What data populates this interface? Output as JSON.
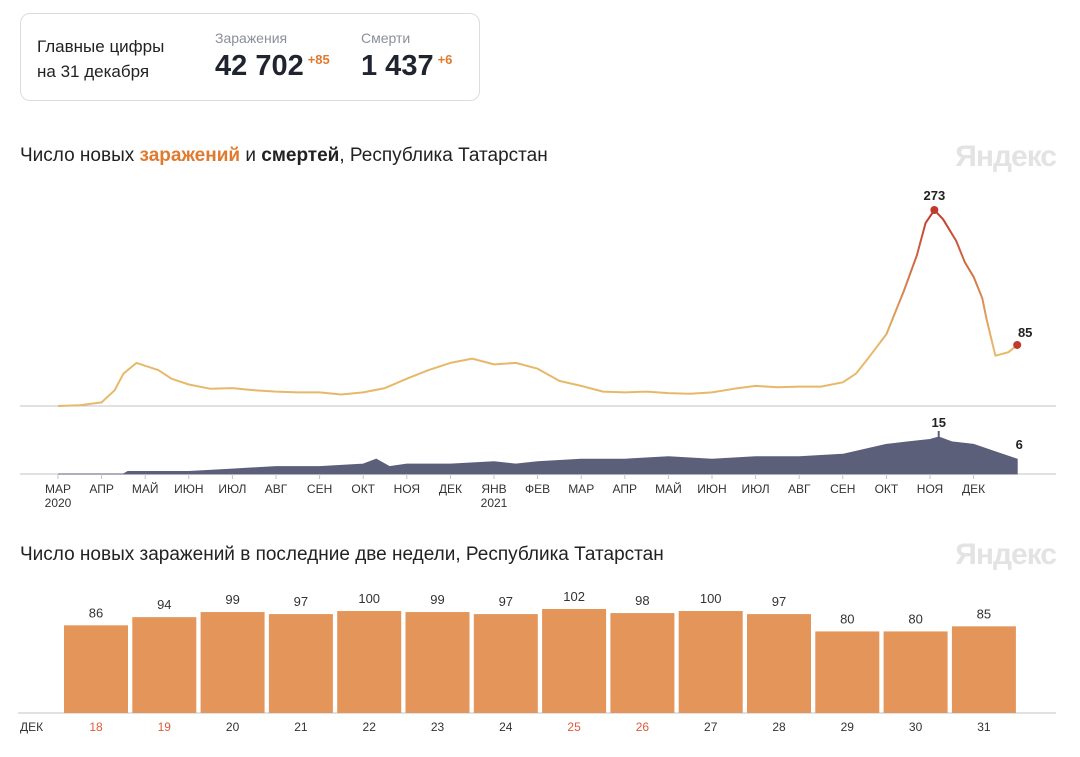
{
  "summary": {
    "heading_line1": "Главные цифры",
    "heading_line2": "на 31 декабря",
    "infections": {
      "label": "Заражения",
      "value": "42 702",
      "delta": "+85"
    },
    "deaths": {
      "label": "Смерти",
      "value": "1 437",
      "delta": "+6"
    }
  },
  "watermark": "Яндекс",
  "colors": {
    "infections": "#e8b86a",
    "infections_peak": "#c0392b",
    "deaths": "#5b5f7a",
    "bars": "#e3955a",
    "weekend_label": "#e05a3a"
  },
  "chart_data": [
    {
      "type": "line",
      "title_parts": [
        "Число новых ",
        "заражений",
        " и ",
        "смертей",
        ", Республика Татарстан"
      ],
      "x_ticks": [
        "МАР",
        "АПР",
        "МАЙ",
        "ИЮН",
        "ИЮЛ",
        "АВГ",
        "СЕН",
        "ОКТ",
        "НОЯ",
        "ДЕК",
        "ЯНВ",
        "ФЕВ",
        "МАР",
        "АПР",
        "МАЙ",
        "ИЮН",
        "ИЮЛ",
        "АВГ",
        "СЕН",
        "ОКТ",
        "НОЯ",
        "ДЕК"
      ],
      "year_labels": [
        {
          "tick": 0,
          "text": "2020"
        },
        {
          "tick": 10,
          "text": "2021"
        }
      ],
      "series": [
        {
          "name": "заражений",
          "unit": "months since 2020-03-01",
          "points": [
            [
              0,
              0
            ],
            [
              0.5,
              1
            ],
            [
              1,
              5
            ],
            [
              1.3,
              22
            ],
            [
              1.5,
              45
            ],
            [
              1.8,
              60
            ],
            [
              2,
              56
            ],
            [
              2.3,
              50
            ],
            [
              2.6,
              38
            ],
            [
              3,
              30
            ],
            [
              3.5,
              24
            ],
            [
              4,
              25
            ],
            [
              4.5,
              22
            ],
            [
              5,
              20
            ],
            [
              5.5,
              19
            ],
            [
              6,
              19
            ],
            [
              6.5,
              16
            ],
            [
              7,
              19
            ],
            [
              7.5,
              25
            ],
            [
              8,
              38
            ],
            [
              8.5,
              50
            ],
            [
              9,
              60
            ],
            [
              9.5,
              66
            ],
            [
              10,
              58
            ],
            [
              10.5,
              60
            ],
            [
              11,
              52
            ],
            [
              11.5,
              35
            ],
            [
              12,
              28
            ],
            [
              12.5,
              20
            ],
            [
              13,
              19
            ],
            [
              13.5,
              20
            ],
            [
              14,
              18
            ],
            [
              14.5,
              17
            ],
            [
              15,
              19
            ],
            [
              15.5,
              24
            ],
            [
              16,
              28
            ],
            [
              16.5,
              26
            ],
            [
              17,
              27
            ],
            [
              17.5,
              27
            ],
            [
              18,
              33
            ],
            [
              18.3,
              45
            ],
            [
              18.6,
              68
            ],
            [
              19,
              100
            ],
            [
              19.4,
              160
            ],
            [
              19.7,
              210
            ],
            [
              19.9,
              255
            ],
            [
              20.1,
              273
            ],
            [
              20.3,
              260
            ],
            [
              20.6,
              230
            ],
            [
              20.8,
              200
            ],
            [
              21,
              180
            ],
            [
              21.2,
              150
            ],
            [
              21.3,
              120
            ],
            [
              21.5,
              70
            ],
            [
              21.8,
              75
            ],
            [
              22,
              85
            ]
          ],
          "peak_label": "273",
          "last_label": "85"
        },
        {
          "name": "смертей",
          "points": [
            [
              0,
              0
            ],
            [
              1.5,
              0
            ],
            [
              1.6,
              1
            ],
            [
              3,
              1
            ],
            [
              4,
              2
            ],
            [
              5,
              3
            ],
            [
              6,
              3
            ],
            [
              7,
              4
            ],
            [
              7.3,
              6
            ],
            [
              7.6,
              3
            ],
            [
              8,
              4
            ],
            [
              9,
              4
            ],
            [
              10,
              5
            ],
            [
              10.5,
              4
            ],
            [
              11,
              5
            ],
            [
              12,
              6
            ],
            [
              13,
              6
            ],
            [
              14,
              7
            ],
            [
              15,
              6
            ],
            [
              16,
              7
            ],
            [
              17,
              7
            ],
            [
              18,
              8
            ],
            [
              18.5,
              10
            ],
            [
              19,
              12
            ],
            [
              19.5,
              13
            ],
            [
              20,
              14
            ],
            [
              20.2,
              15
            ],
            [
              20.5,
              13
            ],
            [
              21,
              12
            ],
            [
              21.5,
              9
            ],
            [
              22,
              6
            ]
          ],
          "peak_label": "15",
          "last_label": "6"
        }
      ]
    },
    {
      "type": "bar",
      "title": "Число новых заражений в последние две недели, Республика Татарстан",
      "month_label": "ДЕК",
      "categories": [
        "18",
        "19",
        "20",
        "21",
        "22",
        "23",
        "24",
        "25",
        "26",
        "27",
        "28",
        "29",
        "30",
        "31"
      ],
      "values": [
        86,
        94,
        99,
        97,
        100,
        99,
        97,
        102,
        98,
        100,
        97,
        80,
        80,
        85
      ],
      "weekend": [
        true,
        true,
        false,
        false,
        false,
        false,
        false,
        true,
        true,
        false,
        false,
        false,
        false,
        false
      ]
    }
  ]
}
